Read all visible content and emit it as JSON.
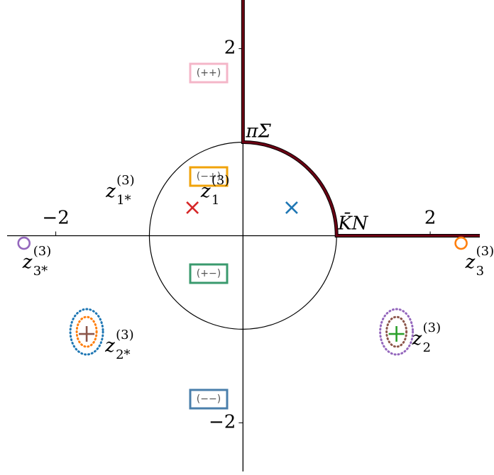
{
  "chart_data": {
    "type": "scatter",
    "xlim": [
      -2.52,
      2.53
    ],
    "ylim": [
      -2.52,
      2.52
    ],
    "xticks": [
      {
        "value": -2,
        "label": "−2"
      },
      2
    ],
    "yticks": [
      {
        "value": -2,
        "label": "−2"
      },
      2
    ],
    "thresholds": [
      {
        "label": "πΣ",
        "x": 0,
        "y": 1
      },
      {
        "label": "K̄N",
        "x": 1,
        "y": 0
      }
    ],
    "branch_cut_color": "#6b0014",
    "points": [
      {
        "base": "z",
        "sup": "(3)",
        "sub": "1*",
        "x": -0.54,
        "y": 0.3,
        "marker": "x",
        "color": "#d62728"
      },
      {
        "base": "z",
        "sup": "(3)",
        "sub": "1",
        "x": 0.52,
        "y": 0.3,
        "marker": "x",
        "color": "#1f77b4"
      },
      {
        "base": "z",
        "sup": "(3)",
        "sub": "3*",
        "x": -2.34,
        "y": -0.08,
        "marker": "o",
        "color": "#9467bd"
      },
      {
        "base": "z",
        "sup": "(3)",
        "sub": "3",
        "x": 2.33,
        "y": -0.08,
        "marker": "o",
        "color": "#ff7f0e"
      },
      {
        "base": "z",
        "sup": "(3)",
        "sub": "2*",
        "x": -1.67,
        "y": -1.05,
        "marker": "+",
        "color": "#8c564b",
        "rings": [
          "#1f77b4",
          "#ff7f0e"
        ]
      },
      {
        "base": "z",
        "sup": "(3)",
        "sub": "2",
        "x": 1.64,
        "y": -1.05,
        "marker": "+",
        "color": "#2ca02c",
        "rings": [
          "#9467bd",
          "#8c564b"
        ]
      }
    ],
    "regions": [
      {
        "label": "(++)",
        "color": "#f4b6c8"
      },
      {
        "label": "(−+)",
        "color": "#f0a30a"
      },
      {
        "label": "(+−)",
        "color": "#3a9a6e"
      },
      {
        "label": "(−−)",
        "color": "#4a7fab"
      }
    ]
  }
}
